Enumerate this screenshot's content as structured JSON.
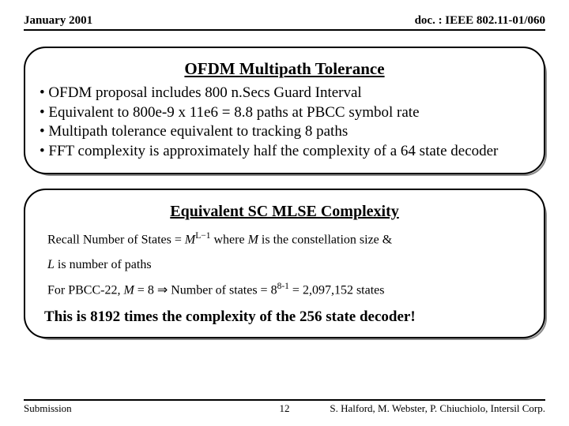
{
  "header": {
    "date": "January 2001",
    "docnum": "doc. : IEEE 802.11-01/060"
  },
  "box1": {
    "title": "OFDM Multipath Tolerance",
    "bullets": [
      "• OFDM proposal includes 800 n.Secs Guard Interval",
      "• Equivalent to 800e-9 x 11e6 = 8.8 paths at PBCC symbol rate",
      "• Multipath tolerance equivalent to tracking 8 paths",
      "• FFT complexity is approximately half the complexity of a 64 state decoder"
    ]
  },
  "box2": {
    "title": "Equivalent SC MLSE Complexity",
    "recall_prefix": "Recall  Number of States = ",
    "recall_base": "M",
    "recall_exp": "L−1",
    "recall_suffix": " where ",
    "recall_M": "M",
    "recall_after_M": " is the constellation size &",
    "line_L_var": "L",
    "line_L_rest": " is number of paths",
    "pbcc_prefix": "For PBCC-22, ",
    "pbcc_M": "M",
    "pbcc_eq": " = 8  ",
    "arrow": "⇒",
    "pbcc_num_prefix": "  Number of states = 8",
    "pbcc_exp": "8-1",
    "pbcc_result": " = 2,097,152 states",
    "conclusion": "This is 8192 times the complexity of the 256 state decoder!"
  },
  "footer": {
    "left": "Submission",
    "page": "12",
    "right": "S. Halford, M. Webster, P. Chiuchiolo, Intersil Corp."
  }
}
